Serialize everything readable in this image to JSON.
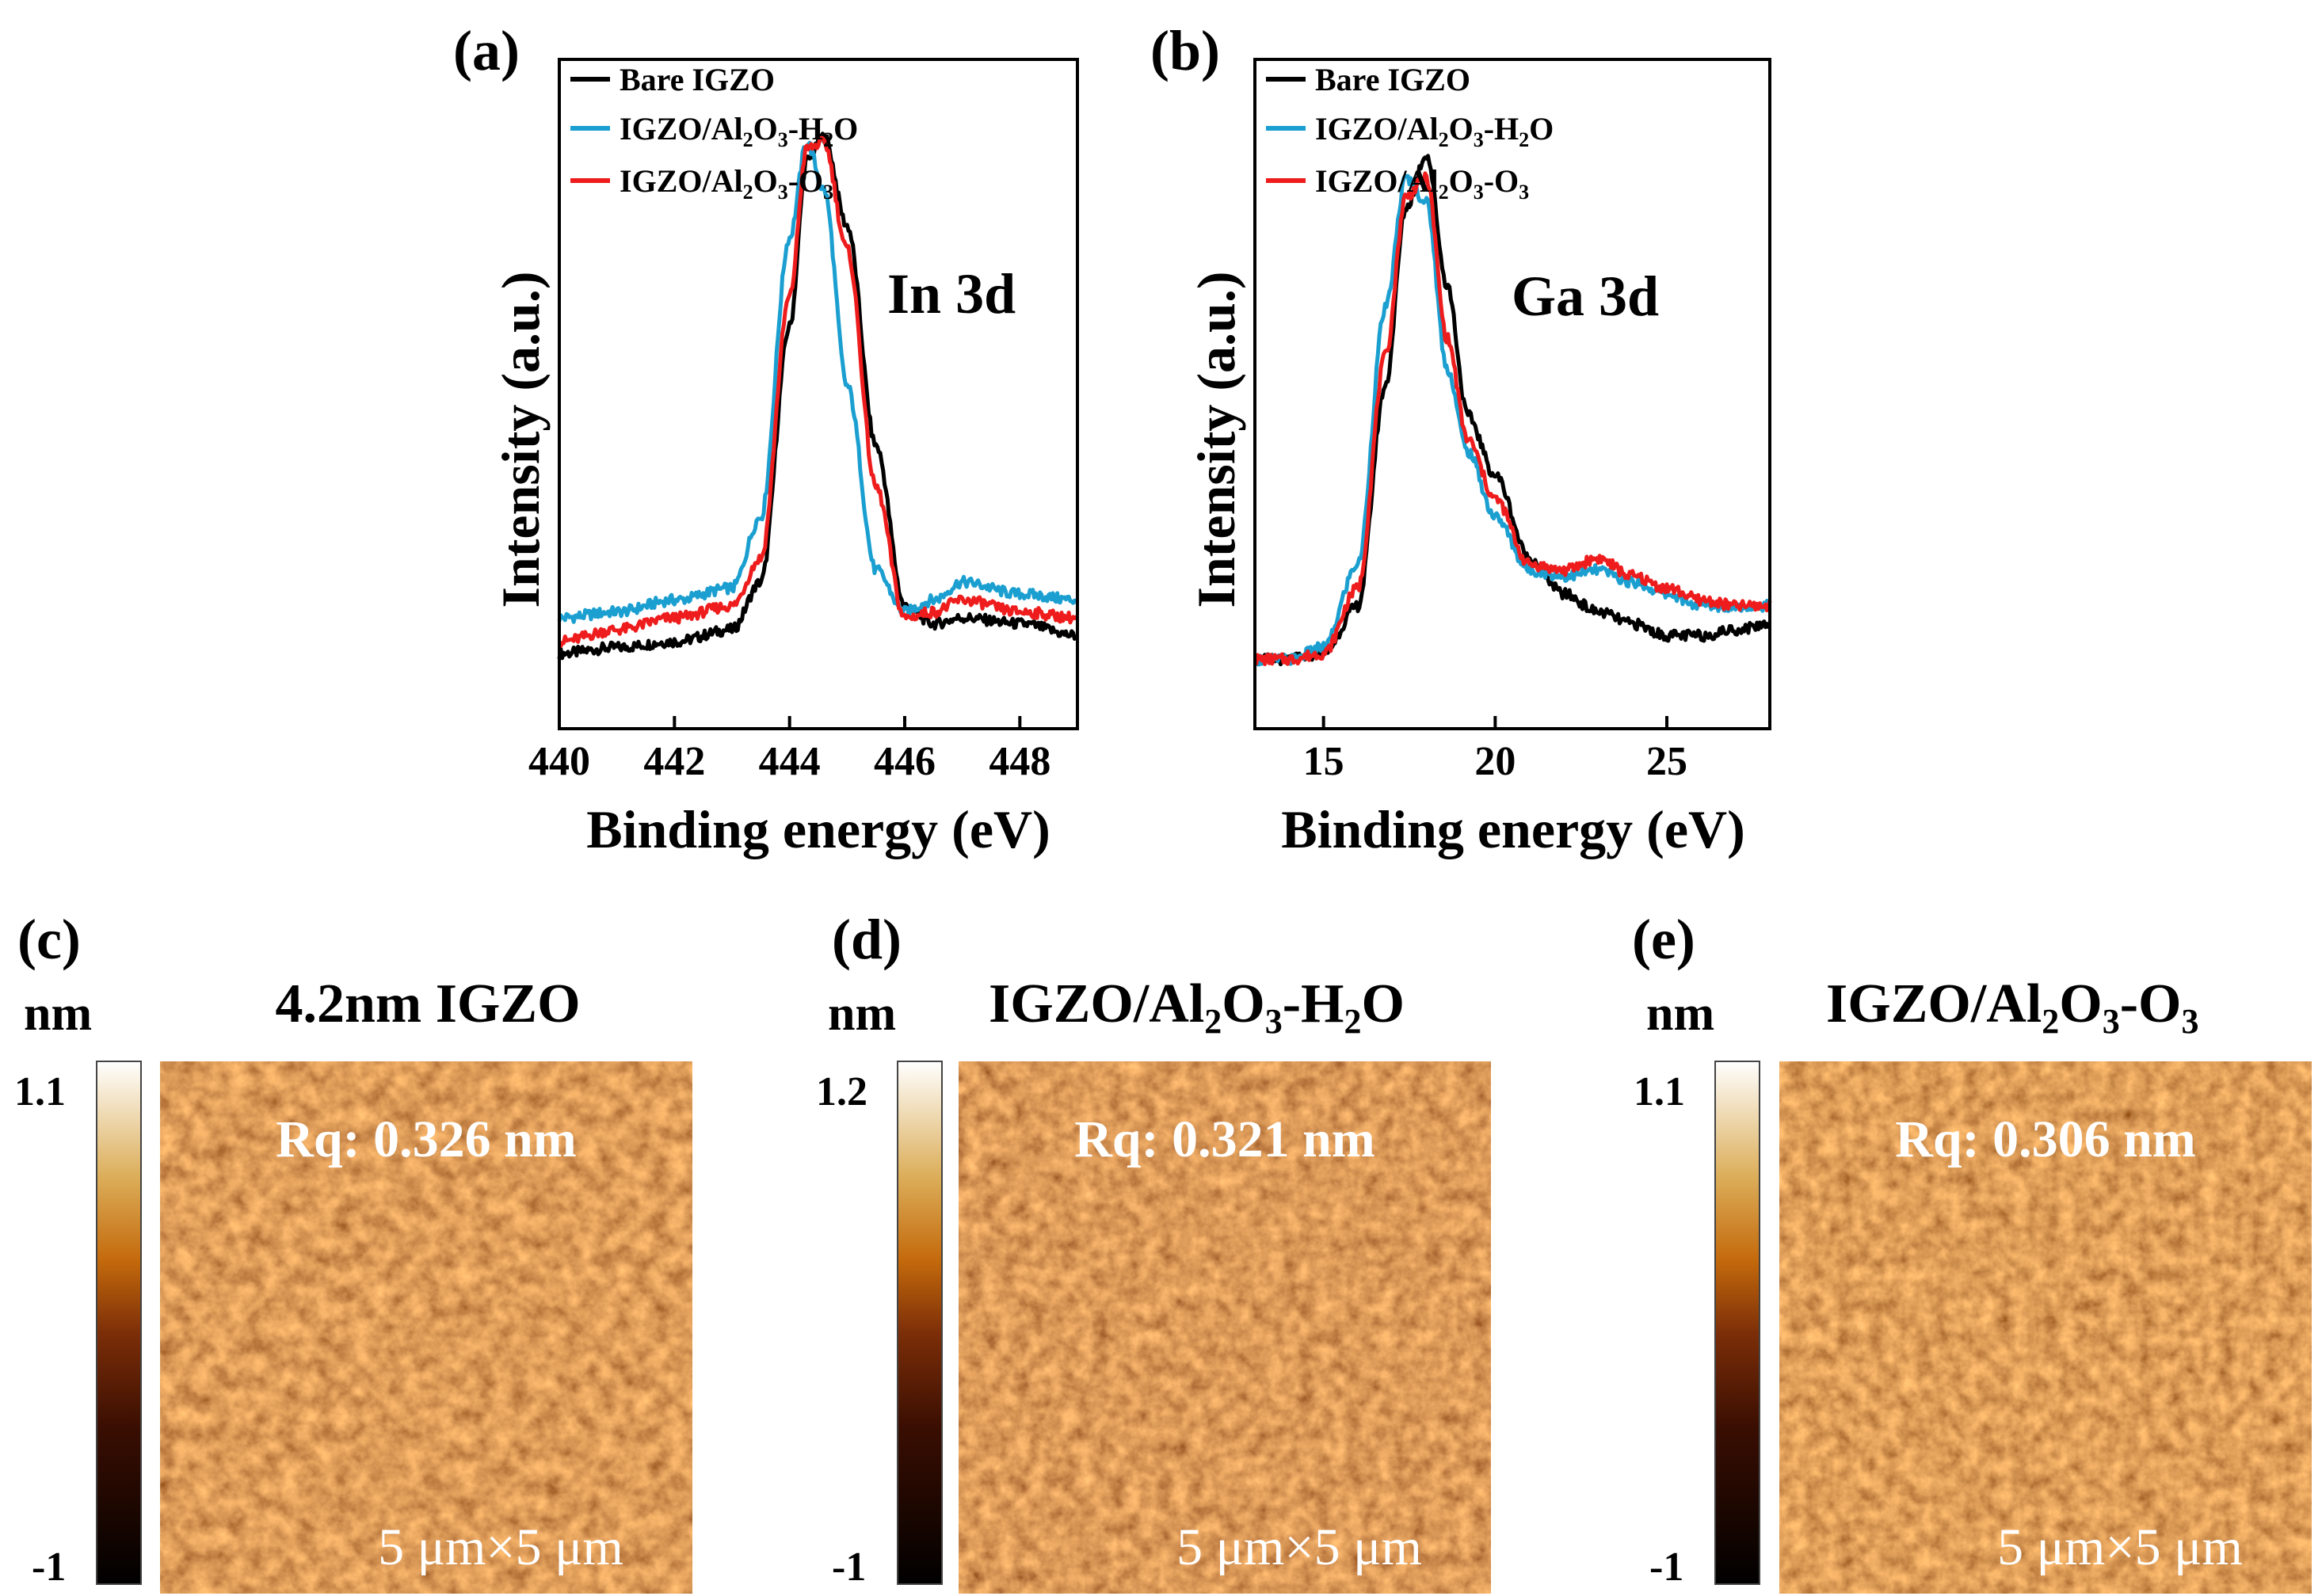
{
  "panels": {
    "a": "(a)",
    "b": "(b)",
    "c": "(c)",
    "d": "(d)",
    "e": "(e)"
  },
  "legend": {
    "bare": "Bare IGZO",
    "h2o_pre": "IGZO/Al",
    "h2o_sub": "2",
    "h2o_mid": "O",
    "h2o_sub2": "3",
    "h2o_post": "-H",
    "h2o_sub3": "2",
    "h2o_end": "O",
    "o3_pre": "IGZO/Al",
    "o3_sub": "2",
    "o3_mid": "O",
    "o3_sub2": "3",
    "o3_post": "-O",
    "o3_sub3": "3"
  },
  "colors": {
    "bare": "#000000",
    "h2o": "#1a9fd0",
    "o3": "#ee1c1c"
  },
  "chart_data": [
    {
      "type": "line",
      "panel": "(a)",
      "annotation": "In 3d",
      "xlabel": "Binding energy (eV)",
      "ylabel": "Intensity (a.u.)",
      "xlim": [
        440,
        449
      ],
      "xticks": [
        "440",
        "442",
        "444",
        "446",
        "448"
      ],
      "ylim": [
        0,
        1.0
      ],
      "legend_position": "top-left",
      "series": [
        {
          "name": "Bare IGZO",
          "color": "#000000",
          "x": [
            440.0,
            441.0,
            442.0,
            443.0,
            443.5,
            444.0,
            444.3,
            444.6,
            445.0,
            445.5,
            446.0,
            446.5,
            447.0,
            448.0,
            449.0
          ],
          "y": [
            0.1,
            0.11,
            0.12,
            0.14,
            0.22,
            0.65,
            0.93,
            0.97,
            0.82,
            0.45,
            0.18,
            0.15,
            0.16,
            0.15,
            0.13
          ]
        },
        {
          "name": "IGZO/Al2O3-H2O",
          "color": "#1a9fd0",
          "x": [
            440.0,
            441.0,
            442.0,
            443.0,
            443.5,
            444.0,
            444.3,
            444.6,
            445.0,
            445.5,
            446.0,
            446.5,
            447.0,
            448.0,
            449.0
          ],
          "y": [
            0.16,
            0.17,
            0.19,
            0.21,
            0.33,
            0.8,
            0.96,
            0.88,
            0.55,
            0.24,
            0.17,
            0.19,
            0.22,
            0.2,
            0.19
          ]
        },
        {
          "name": "IGZO/Al2O3-O3",
          "color": "#ee1c1c",
          "x": [
            440.0,
            441.0,
            442.0,
            443.0,
            443.5,
            444.0,
            444.3,
            444.6,
            445.0,
            445.5,
            446.0,
            446.5,
            447.0,
            448.0,
            449.0
          ],
          "y": [
            0.12,
            0.14,
            0.16,
            0.18,
            0.26,
            0.7,
            0.95,
            0.96,
            0.78,
            0.38,
            0.16,
            0.17,
            0.19,
            0.17,
            0.16
          ]
        }
      ]
    },
    {
      "type": "line",
      "panel": "(b)",
      "annotation": "Ga 3d",
      "xlabel": "Binding energy (eV)",
      "ylabel": "Intensity (a.u.)",
      "xlim": [
        13,
        28
      ],
      "xticks": [
        "15",
        "20",
        "25"
      ],
      "ylim": [
        0,
        1.0
      ],
      "legend_position": "top-left",
      "series": [
        {
          "name": "Bare IGZO",
          "color": "#000000",
          "x": [
            13,
            14,
            15,
            16,
            16.8,
            17.4,
            18.0,
            18.6,
            19.2,
            20.0,
            21.0,
            22.0,
            23.0,
            24.0,
            25.0,
            26.0,
            27.0,
            28.0
          ],
          "y": [
            0.09,
            0.09,
            0.1,
            0.18,
            0.55,
            0.85,
            0.94,
            0.72,
            0.5,
            0.4,
            0.26,
            0.2,
            0.17,
            0.15,
            0.13,
            0.13,
            0.14,
            0.15
          ]
        },
        {
          "name": "IGZO/Al2O3-H2O",
          "color": "#1a9fd0",
          "x": [
            13,
            14,
            15,
            16,
            16.8,
            17.4,
            18.0,
            18.6,
            19.2,
            20.0,
            21.0,
            22.0,
            23.0,
            24.0,
            25.0,
            26.0,
            27.0,
            28.0
          ],
          "y": [
            0.09,
            0.09,
            0.11,
            0.25,
            0.68,
            0.9,
            0.86,
            0.58,
            0.44,
            0.33,
            0.24,
            0.23,
            0.24,
            0.22,
            0.2,
            0.18,
            0.18,
            0.18
          ]
        },
        {
          "name": "IGZO/Al2O3-O3",
          "color": "#ee1c1c",
          "x": [
            13,
            14,
            15,
            16,
            16.8,
            17.4,
            18.0,
            18.6,
            19.2,
            20.0,
            21.0,
            22.0,
            23.0,
            24.0,
            25.0,
            26.0,
            27.0,
            28.0
          ],
          "y": [
            0.09,
            0.09,
            0.1,
            0.21,
            0.6,
            0.87,
            0.9,
            0.63,
            0.46,
            0.36,
            0.25,
            0.24,
            0.26,
            0.23,
            0.21,
            0.19,
            0.18,
            0.18
          ]
        }
      ]
    },
    {
      "type": "heatmap",
      "panel": "(c)",
      "title_pre": "4.2nm IGZO",
      "unit": "nm",
      "colorbar_max": "1.1",
      "colorbar_min": "-1",
      "rq": "Rq: 0.326 nm",
      "scan_size": "5 μm×5 μm"
    },
    {
      "type": "heatmap",
      "panel": "(d)",
      "title_pre": "IGZO/Al",
      "title_sub": "2",
      "title_mid": "O",
      "title_sub2": "3",
      "title_post": "-H",
      "title_sub3": "2",
      "title_end": "O",
      "unit": "nm",
      "colorbar_max": "1.2",
      "colorbar_min": "-1",
      "rq": "Rq: 0.321 nm",
      "scan_size": "5 μm×5 μm"
    },
    {
      "type": "heatmap",
      "panel": "(e)",
      "title_pre": "IGZO/Al",
      "title_sub": "2",
      "title_mid": "O",
      "title_sub2": "3",
      "title_post": "-O",
      "title_sub3": "3",
      "unit": "nm",
      "colorbar_max": "1.1",
      "colorbar_min": "-1",
      "rq": "Rq: 0.306 nm",
      "scan_size": "5 μm×5 μm"
    }
  ]
}
